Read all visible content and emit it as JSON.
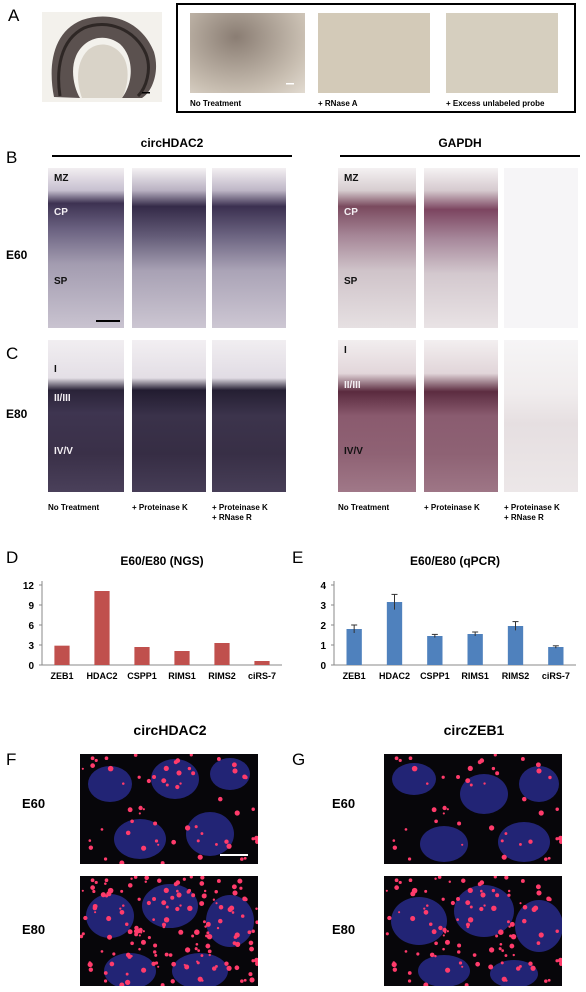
{
  "panel_a": {
    "letter": "A",
    "captions": [
      "No Treatment",
      "+ RNase A",
      "+ Excess unlabeled probe"
    ]
  },
  "panel_b": {
    "letter": "B",
    "title_left": "circHDAC2",
    "title_right": "GAPDH",
    "row_label": "E60",
    "layers": [
      "MZ",
      "CP",
      "SP"
    ]
  },
  "panel_c": {
    "letter": "C",
    "row_label": "E80",
    "layers": [
      "I",
      "II/III",
      "IV/V"
    ],
    "captions": [
      "No Treatment",
      "+ Proteinase K",
      "+ Proteinase K\n+ RNase R"
    ]
  },
  "chart_data": [
    {
      "type": "bar",
      "panel": "D",
      "title": "E60/E80 (NGS)",
      "categories": [
        "ZEB1",
        "HDAC2",
        "CSPP1",
        "RIMS1",
        "RIMS2",
        "ciRS-7"
      ],
      "values": [
        2.9,
        11.1,
        2.7,
        2.1,
        3.3,
        0.6
      ],
      "ylim": [
        0,
        12
      ],
      "yticks": [
        0,
        3,
        6,
        9,
        12
      ],
      "color": "#c0504d"
    },
    {
      "type": "bar",
      "panel": "E",
      "title": "E60/E80 (qPCR)",
      "categories": [
        "ZEB1",
        "HDAC2",
        "CSPP1",
        "RIMS1",
        "RIMS2",
        "ciRS-7"
      ],
      "values": [
        1.8,
        3.15,
        1.45,
        1.55,
        1.95,
        0.9
      ],
      "errors": [
        0.2,
        0.38,
        0.08,
        0.1,
        0.22,
        0.06
      ],
      "ylim": [
        0,
        4
      ],
      "yticks": [
        0,
        1,
        2,
        3,
        4
      ],
      "color": "#4f81bd"
    }
  ],
  "panel_f": {
    "letter": "F",
    "title": "circHDAC2",
    "rows": [
      "E60",
      "E80"
    ]
  },
  "panel_g": {
    "letter": "G",
    "title": "circZEB1",
    "rows": [
      "E60",
      "E80"
    ]
  },
  "labels": {
    "D": "D",
    "E": "E"
  }
}
